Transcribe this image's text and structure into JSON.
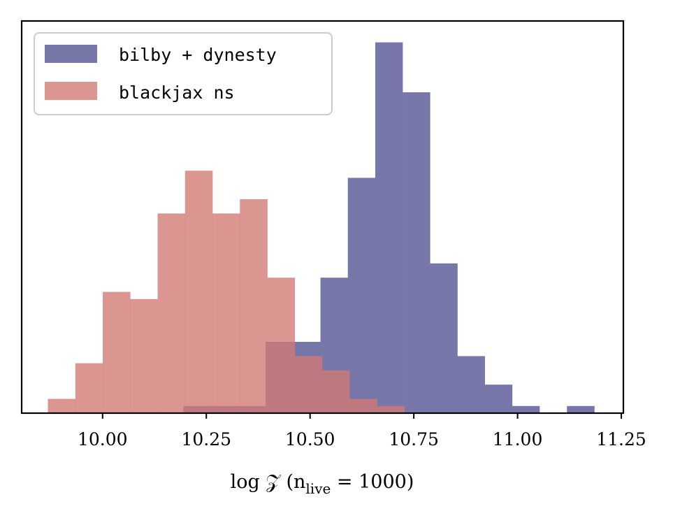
{
  "chart_data": {
    "type": "histogram",
    "title": "",
    "xlabel": "log 𝒵 (n",
    "xlabel_sub": "live",
    "xlabel_tail": " = 1000)",
    "ylabel": "",
    "xlim": [
      9.805,
      11.255
    ],
    "ylim": [
      0,
      27.5
    ],
    "xticks": [
      "10.00",
      "10.25",
      "10.50",
      "10.75",
      "11.00",
      "11.25"
    ],
    "xtick_values": [
      10.0,
      10.25,
      10.5,
      10.75,
      11.0,
      11.25
    ],
    "yticks_visible": false,
    "grid": false,
    "legend_position": "top-left",
    "series": [
      {
        "name": "bilby + dynesty",
        "color": "#7777aa",
        "bins": [
          {
            "x0": 10.195,
            "x1": 10.261,
            "count": 0.5
          },
          {
            "x0": 10.261,
            "x1": 10.327,
            "count": 0.5
          },
          {
            "x0": 10.327,
            "x1": 10.393,
            "count": 0.5
          },
          {
            "x0": 10.393,
            "x1": 10.459,
            "count": 5.0
          },
          {
            "x0": 10.459,
            "x1": 10.525,
            "count": 5.0
          },
          {
            "x0": 10.525,
            "x1": 10.591,
            "count": 9.5
          },
          {
            "x0": 10.591,
            "x1": 10.657,
            "count": 16.5
          },
          {
            "x0": 10.657,
            "x1": 10.723,
            "count": 26.0
          },
          {
            "x0": 10.723,
            "x1": 10.789,
            "count": 22.5
          },
          {
            "x0": 10.789,
            "x1": 10.855,
            "count": 10.5
          },
          {
            "x0": 10.855,
            "x1": 10.921,
            "count": 4.0
          },
          {
            "x0": 10.921,
            "x1": 10.987,
            "count": 2.0
          },
          {
            "x0": 10.987,
            "x1": 11.053,
            "count": 0.5
          },
          {
            "x0": 11.053,
            "x1": 11.119,
            "count": 0.0
          },
          {
            "x0": 11.119,
            "x1": 11.185,
            "count": 0.5
          }
        ]
      },
      {
        "name": "blackjax ns",
        "color": "#d27873",
        "bins": [
          {
            "x0": 9.8682,
            "x1": 9.9343,
            "count": 1.0
          },
          {
            "x0": 9.9343,
            "x1": 10.0004,
            "count": 3.5
          },
          {
            "x0": 10.0004,
            "x1": 10.0665,
            "count": 8.5
          },
          {
            "x0": 10.0665,
            "x1": 10.1326,
            "count": 8.0
          },
          {
            "x0": 10.1326,
            "x1": 10.1987,
            "count": 14.0
          },
          {
            "x0": 10.1987,
            "x1": 10.2648,
            "count": 17.0
          },
          {
            "x0": 10.2648,
            "x1": 10.3309,
            "count": 14.0
          },
          {
            "x0": 10.3309,
            "x1": 10.397,
            "count": 15.0
          },
          {
            "x0": 10.397,
            "x1": 10.4631,
            "count": 9.5
          },
          {
            "x0": 10.4631,
            "x1": 10.5292,
            "count": 4.0
          },
          {
            "x0": 10.5292,
            "x1": 10.5953,
            "count": 3.0
          },
          {
            "x0": 10.5953,
            "x1": 10.6614,
            "count": 1.0
          },
          {
            "x0": 10.6614,
            "x1": 10.7275,
            "count": 0.5
          }
        ]
      }
    ]
  }
}
